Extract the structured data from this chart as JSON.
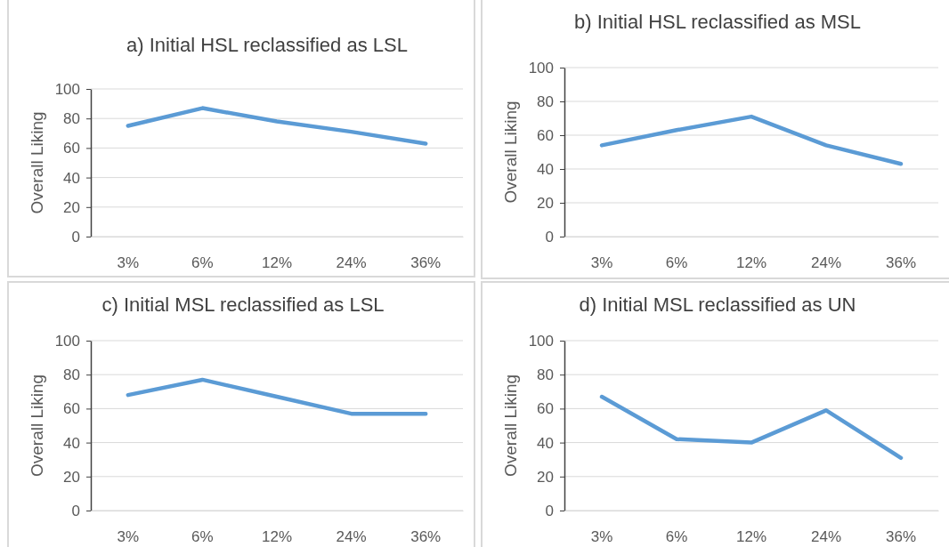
{
  "chart_data": [
    {
      "type": "line",
      "title": "a) Initial HSL reclassified as LSL",
      "ylabel": "Overall Liking",
      "categories": [
        "3%",
        "6%",
        "12%",
        "24%",
        "36%"
      ],
      "series": [
        {
          "color": "#5b9bd5",
          "values": [
            75,
            87,
            78,
            71,
            63
          ]
        }
      ],
      "ylim": [
        0,
        100
      ],
      "yticks": [
        0,
        20,
        40,
        60,
        80,
        100
      ],
      "grid": "y"
    },
    {
      "type": "line",
      "title": "b) Initial HSL reclassified as MSL",
      "ylabel": "Overall Liking",
      "categories": [
        "3%",
        "6%",
        "12%",
        "24%",
        "36%"
      ],
      "series": [
        {
          "color": "#5b9bd5",
          "values": [
            54,
            63,
            71,
            54,
            43
          ]
        }
      ],
      "ylim": [
        0,
        100
      ],
      "yticks": [
        0,
        20,
        40,
        60,
        80,
        100
      ],
      "grid": "y"
    },
    {
      "type": "line",
      "title": "c) Initial MSL reclassified as LSL",
      "ylabel": "Overall Liking",
      "categories": [
        "3%",
        "6%",
        "12%",
        "24%",
        "36%"
      ],
      "series": [
        {
          "color": "#5b9bd5",
          "values": [
            68,
            77,
            67,
            57,
            57
          ]
        }
      ],
      "ylim": [
        0,
        100
      ],
      "yticks": [
        0,
        20,
        40,
        60,
        80,
        100
      ],
      "grid": "y"
    },
    {
      "type": "line",
      "title": "d) Initial MSL reclassified as UN",
      "ylabel": "Overall Liking",
      "categories": [
        "3%",
        "6%",
        "12%",
        "24%",
        "36%"
      ],
      "series": [
        {
          "color": "#5b9bd5",
          "values": [
            67,
            42,
            40,
            59,
            31
          ]
        }
      ],
      "ylim": [
        0,
        100
      ],
      "yticks": [
        0,
        20,
        40,
        60,
        80,
        100
      ],
      "grid": "y"
    }
  ]
}
